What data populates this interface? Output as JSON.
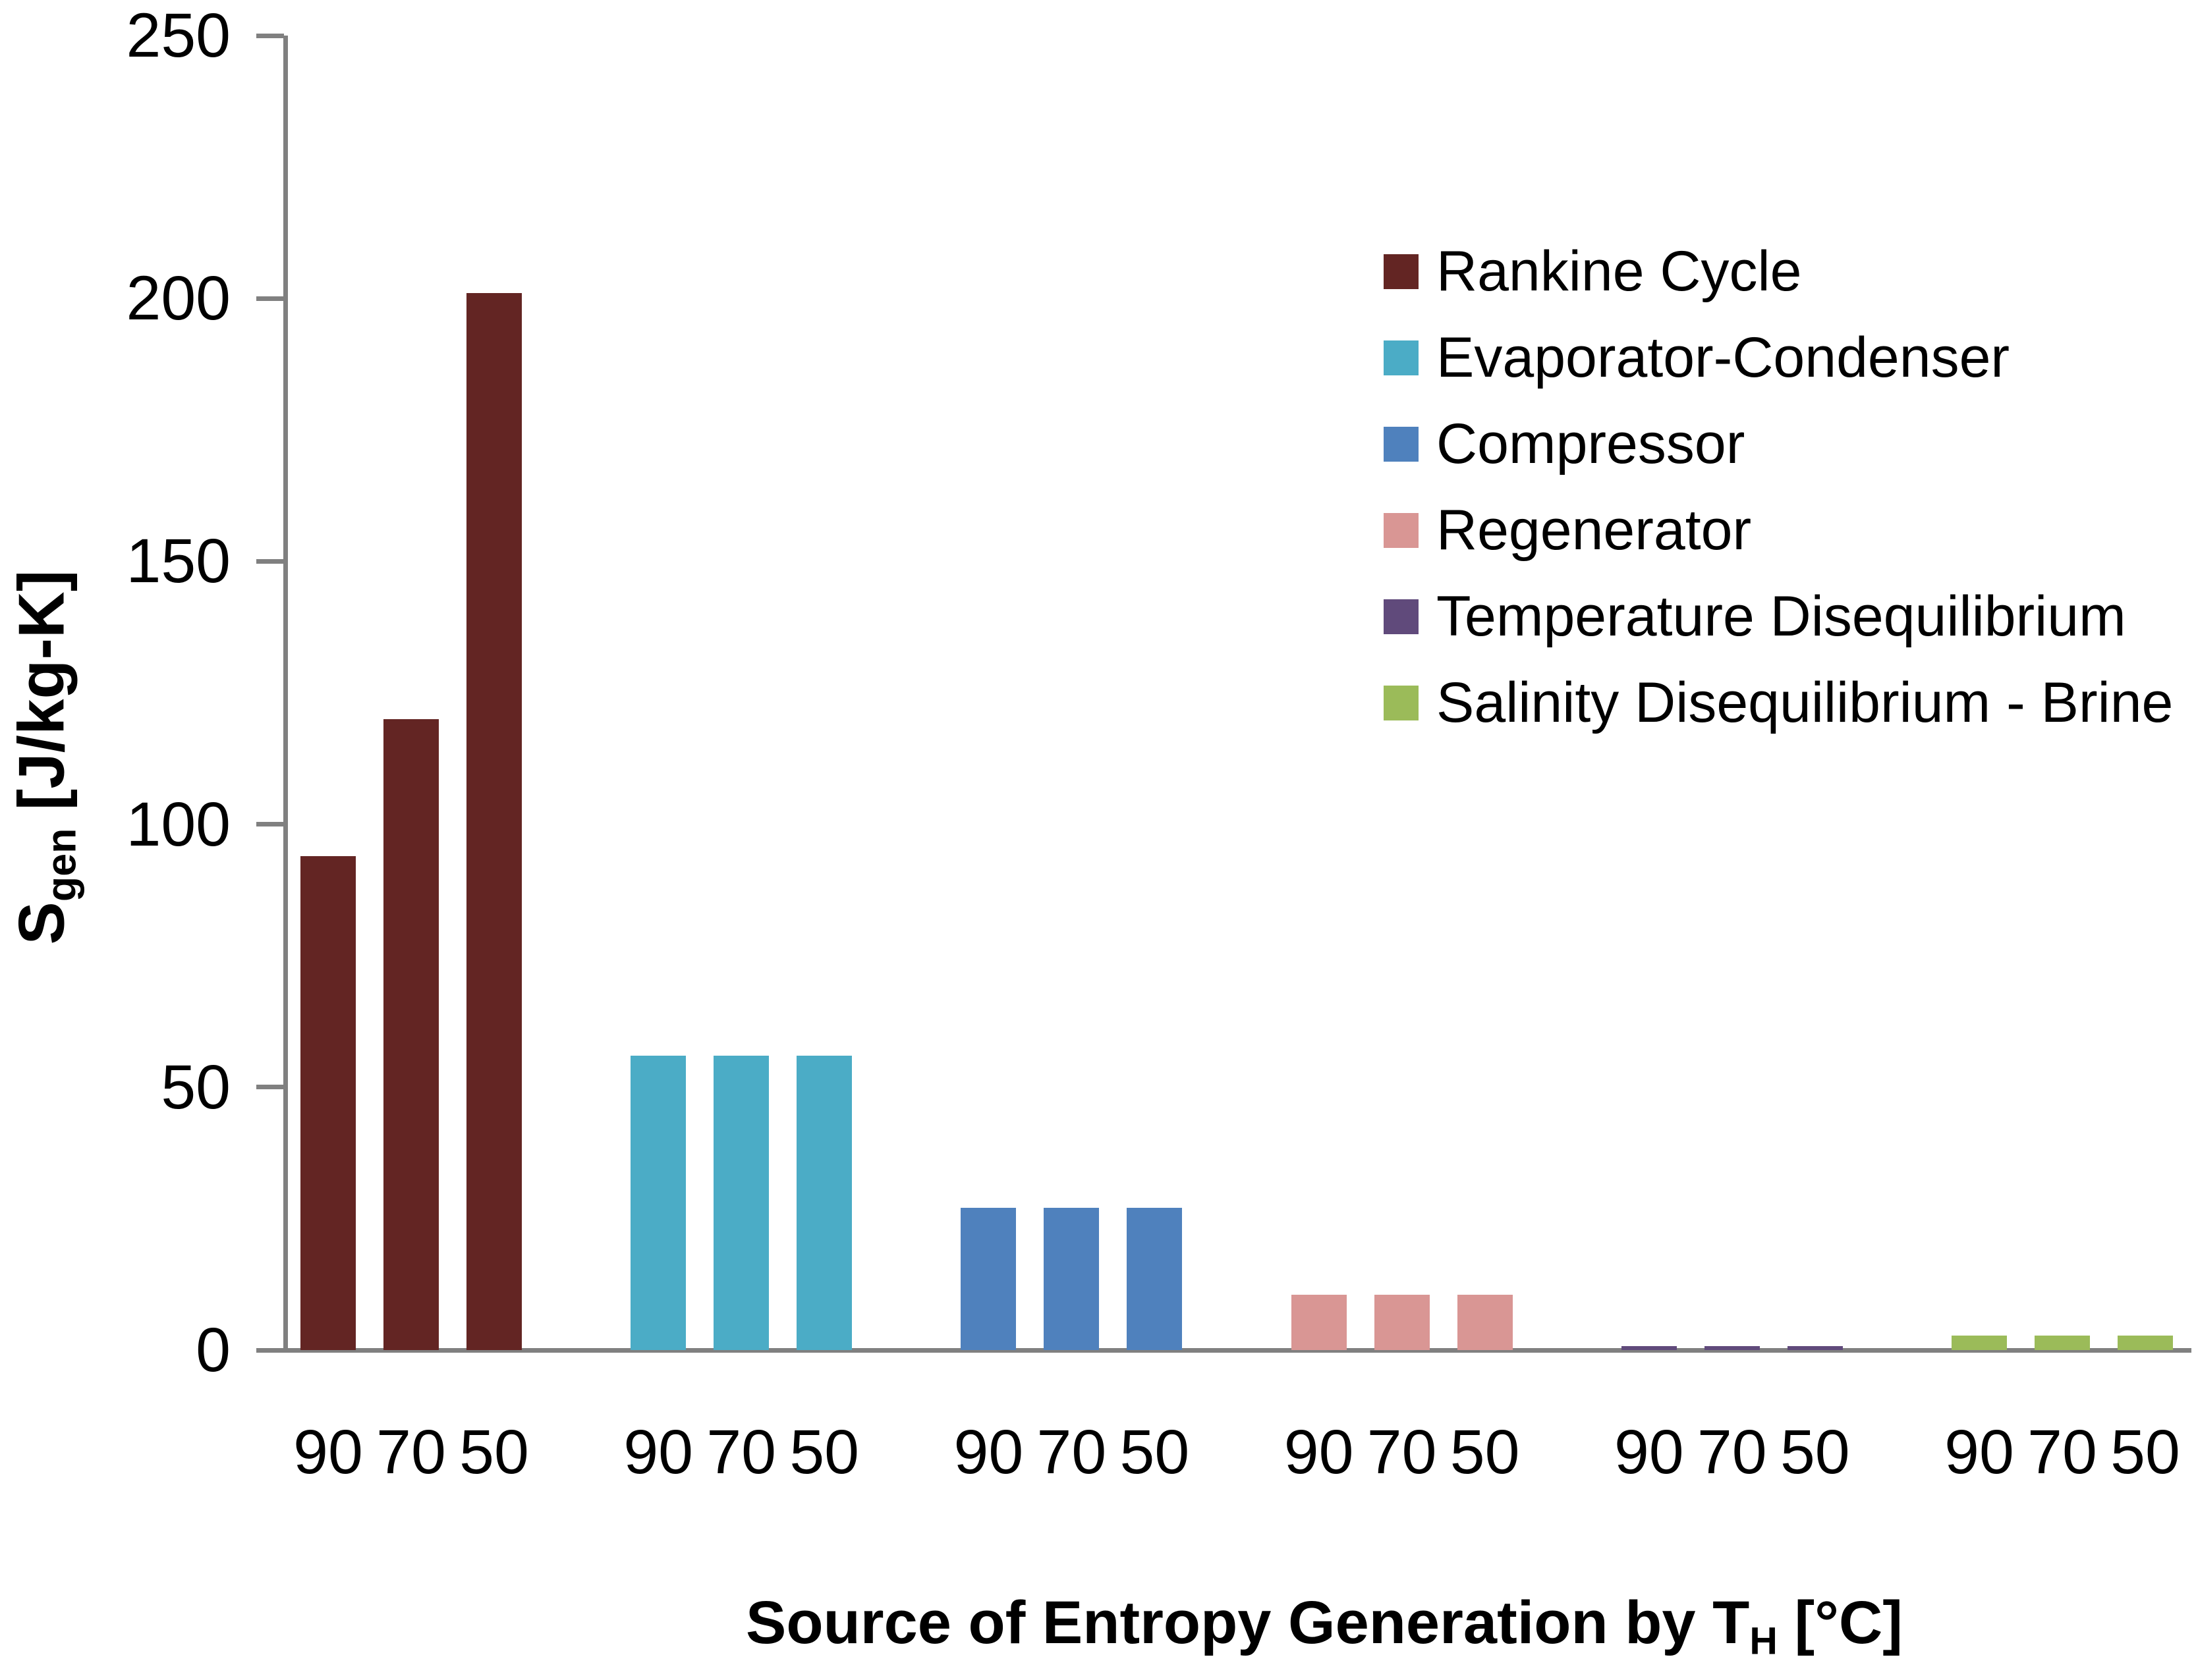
{
  "chart_data": {
    "type": "bar",
    "title": "",
    "x_axis": {
      "title_prefix": "Source of Entropy Generation by T",
      "title_sub": "H",
      "title_suffix": " [°C]"
    },
    "y_axis": {
      "label_main": "S",
      "label_sub": "gen",
      "label_suffix": " [J/kg-K]",
      "min": 0,
      "max": 250,
      "tick_step": 50,
      "tick_labels": [
        "250",
        "200",
        "150",
        "100",
        "50",
        "0"
      ]
    },
    "categories": [
      "90",
      "70",
      "50"
    ],
    "series": [
      {
        "name": "Rankine Cycle",
        "color": "#632523",
        "values": [
          94,
          120,
          201
        ]
      },
      {
        "name": "Evaporator-Condenser",
        "color": "#4BACC6",
        "values": [
          56,
          56,
          56
        ]
      },
      {
        "name": "Compressor",
        "color": "#4F81BD",
        "values": [
          27,
          27,
          27
        ]
      },
      {
        "name": "Regenerator",
        "color": "#D99694",
        "values": [
          10.5,
          10.5,
          10.5
        ]
      },
      {
        "name": "Temperature Disequilibrium",
        "color": "#604A7B",
        "values": [
          0.8,
          0.8,
          0.8
        ]
      },
      {
        "name": "Salinity Disequilibrium - Brine",
        "color": "#9BBB59",
        "values": [
          2.8,
          2.8,
          2.8
        ]
      }
    ],
    "legend_position": "upper-right",
    "grid": false,
    "axis_color": "#808080",
    "text_color": "#000000",
    "background": "#FFFFFF"
  }
}
